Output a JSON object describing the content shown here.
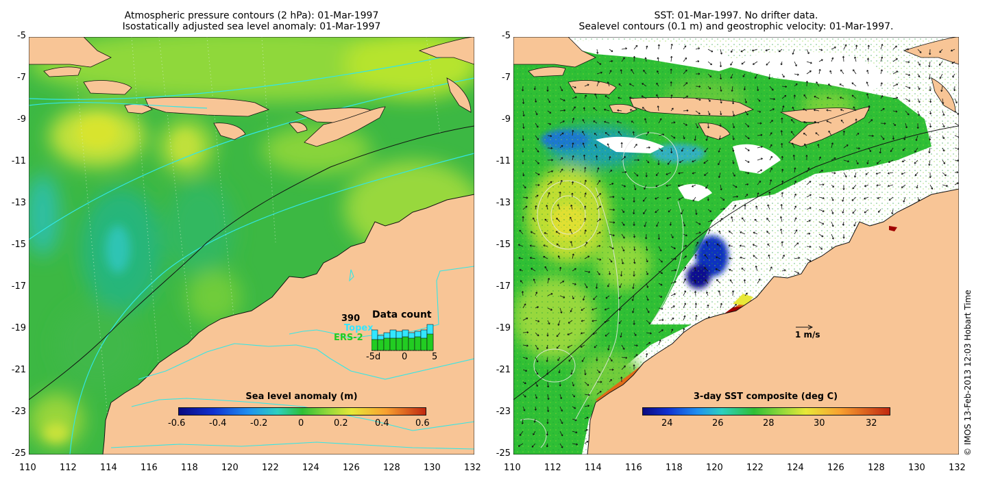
{
  "left_panel": {
    "title_line1": "Atmospheric pressure contours (2 hPa): 01-Mar-1997",
    "title_line2": "Isostatically adjusted sea level anomaly: 01-Mar-1997",
    "colorbar": {
      "title": "Sea level anomaly (m)",
      "ticks": [
        "-0.6",
        "-0.4",
        "-0.2",
        "0",
        "0.2",
        "0.4",
        "0.6"
      ]
    },
    "inset": {
      "count_value": "390",
      "title": "Data count",
      "series1": "Topex",
      "series2": "ERS-2",
      "x_ticks": [
        "-5d",
        "0",
        "5"
      ],
      "colors": {
        "topex": "#33e6ff",
        "ers2": "#22cc22"
      }
    }
  },
  "right_panel": {
    "title_line1": "SST: 01-Mar-1997. No drifter data.",
    "title_line2": "Sealevel contours (0.1 m) and geostrophic velocity: 01-Mar-1997.",
    "colorbar": {
      "title": "3-day SST composite (deg C)",
      "ticks": [
        "24",
        "26",
        "28",
        "30",
        "32"
      ]
    },
    "velocity_scale_label": "1 m/s"
  },
  "axes": {
    "lon_ticks": [
      "110",
      "112",
      "114",
      "116",
      "118",
      "120",
      "122",
      "124",
      "126",
      "128",
      "130",
      "132"
    ],
    "lat_ticks": [
      "-5",
      "-7",
      "-9",
      "-11",
      "-13",
      "-15",
      "-17",
      "-19",
      "-21",
      "-23",
      "-25"
    ]
  },
  "credit": "© IMOS 13-Feb-2013 12:03 Hobart Time",
  "colors": {
    "land": "#f8c596",
    "sla_base": "#3cb843",
    "sst_base": "#2fbf35",
    "contour": "#33e6e6",
    "warm_sst": "#a00000"
  }
}
